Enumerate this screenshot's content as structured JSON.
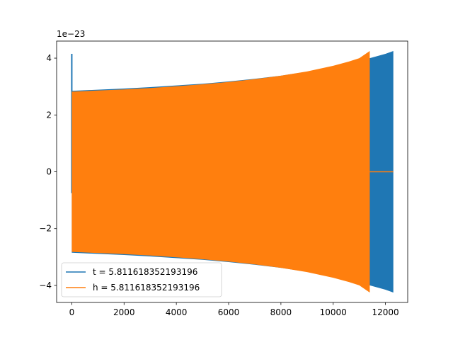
{
  "chart_data": {
    "type": "line",
    "title": "",
    "xlabel": "",
    "ylabel": "",
    "y_offset_label": "1e−23",
    "xlim": [
      -580,
      12850
    ],
    "ylim": [
      -4.6,
      4.6
    ],
    "x_ticks": [
      0,
      2000,
      4000,
      6000,
      8000,
      10000,
      12000
    ],
    "x_tick_labels": [
      "0",
      "2000",
      "4000",
      "6000",
      "8000",
      "10000",
      "12000"
    ],
    "y_ticks": [
      -4,
      -2,
      0,
      2,
      4
    ],
    "y_tick_labels": [
      "−4",
      "−2",
      "0",
      "2",
      "4"
    ],
    "grid": false,
    "legend_position": "lower-left",
    "series": [
      {
        "name": "t = 5.811618352193196",
        "color": "#1f77b4",
        "envelope": {
          "x": [
            0,
            1000,
            2000,
            3000,
            4000,
            5000,
            6000,
            7000,
            8000,
            9000,
            10000,
            11000,
            11400,
            12000,
            12300
          ],
          "upper": [
            2.85,
            2.89,
            2.93,
            2.98,
            3.04,
            3.1,
            3.18,
            3.27,
            3.38,
            3.52,
            3.7,
            3.95,
            4.0,
            4.15,
            4.25
          ],
          "lower": [
            -2.85,
            -2.89,
            -2.93,
            -2.98,
            -3.04,
            -3.1,
            -3.18,
            -3.27,
            -3.38,
            -3.52,
            -3.7,
            -3.95,
            -4.0,
            -4.15,
            -4.25
          ]
        },
        "spike": {
          "x": 0,
          "y_max": 4.15,
          "y_min": -0.75
        }
      },
      {
        "name": "h = 5.811618352193196",
        "color": "#ff7f0e",
        "envelope": {
          "x": [
            0,
            1000,
            2000,
            3000,
            4000,
            5000,
            6000,
            7000,
            8000,
            9000,
            10000,
            10600,
            11000,
            11400
          ],
          "upper": [
            2.82,
            2.86,
            2.9,
            2.95,
            3.01,
            3.08,
            3.16,
            3.26,
            3.38,
            3.53,
            3.73,
            3.88,
            4.0,
            4.25
          ],
          "lower": [
            -2.82,
            -2.86,
            -2.9,
            -2.95,
            -3.01,
            -3.08,
            -3.16,
            -3.26,
            -3.38,
            -3.53,
            -3.73,
            -3.88,
            -4.0,
            -4.25
          ]
        },
        "tail": {
          "x": [
            11400,
            12300
          ],
          "y": [
            0,
            0
          ]
        }
      }
    ]
  }
}
